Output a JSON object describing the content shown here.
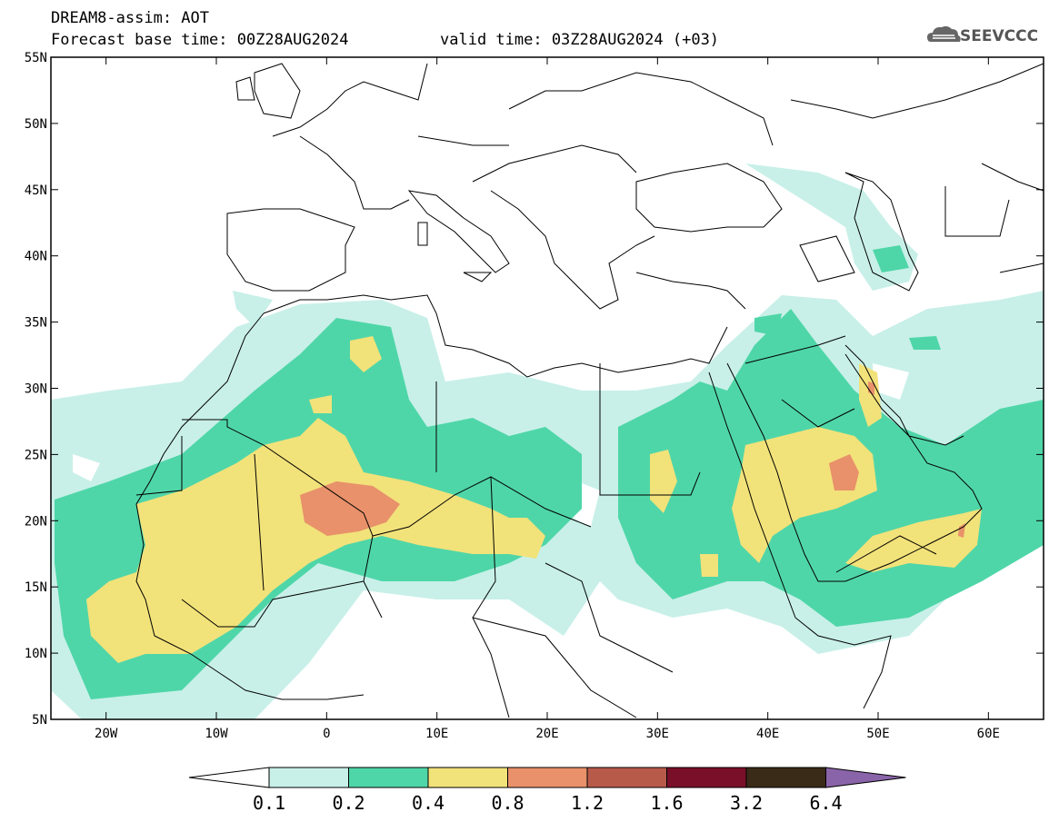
{
  "header": {
    "title_line1": "DREAM8-assim: AOT",
    "title_line2": "Forecast base time: 00Z28AUG2024",
    "valid_time": "valid time: 03Z28AUG2024 (+03)",
    "logo_text": "SEEVCCC"
  },
  "axes": {
    "lat_labels": [
      "55N",
      "50N",
      "45N",
      "40N",
      "35N",
      "30N",
      "25N",
      "20N",
      "15N",
      "10N",
      "5N"
    ],
    "lon_labels": [
      "20W",
      "10W",
      "0",
      "10E",
      "20E",
      "30E",
      "40E",
      "50E",
      "60E"
    ],
    "lat_range": [
      5,
      55
    ],
    "lon_range": [
      -25,
      65
    ]
  },
  "colorbar": {
    "labels": [
      "0.1",
      "0.2",
      "0.4",
      "0.8",
      "1.2",
      "1.6",
      "3.2",
      "6.4"
    ],
    "colors": [
      "#ffffff",
      "#c8f0e8",
      "#4fd6a8",
      "#f2e27a",
      "#e8916a",
      "#b85a4a",
      "#7a0f2a",
      "#3a2a18",
      "#8a64a8"
    ]
  },
  "map": {
    "bg": "#ffffff",
    "field": "Aerosol optical thickness"
  }
}
